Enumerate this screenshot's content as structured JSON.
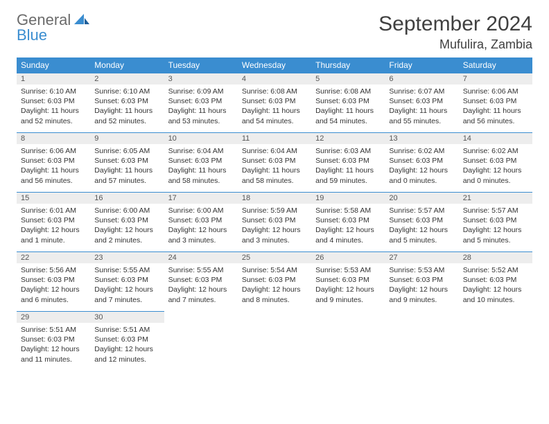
{
  "logo": {
    "general": "General",
    "blue": "Blue"
  },
  "title": "September 2024",
  "location": "Mufulira, Zambia",
  "colors": {
    "header_bg": "#3a8dd0",
    "daynum_bg": "#ededed",
    "border": "#3a8dd0",
    "text": "#333333",
    "page_bg": "#ffffff"
  },
  "weekdays": [
    "Sunday",
    "Monday",
    "Tuesday",
    "Wednesday",
    "Thursday",
    "Friday",
    "Saturday"
  ],
  "weeks": [
    [
      {
        "n": "1",
        "rise": "6:10 AM",
        "set": "6:03 PM",
        "dl": "11 hours and 52 minutes."
      },
      {
        "n": "2",
        "rise": "6:10 AM",
        "set": "6:03 PM",
        "dl": "11 hours and 52 minutes."
      },
      {
        "n": "3",
        "rise": "6:09 AM",
        "set": "6:03 PM",
        "dl": "11 hours and 53 minutes."
      },
      {
        "n": "4",
        "rise": "6:08 AM",
        "set": "6:03 PM",
        "dl": "11 hours and 54 minutes."
      },
      {
        "n": "5",
        "rise": "6:08 AM",
        "set": "6:03 PM",
        "dl": "11 hours and 54 minutes."
      },
      {
        "n": "6",
        "rise": "6:07 AM",
        "set": "6:03 PM",
        "dl": "11 hours and 55 minutes."
      },
      {
        "n": "7",
        "rise": "6:06 AM",
        "set": "6:03 PM",
        "dl": "11 hours and 56 minutes."
      }
    ],
    [
      {
        "n": "8",
        "rise": "6:06 AM",
        "set": "6:03 PM",
        "dl": "11 hours and 56 minutes."
      },
      {
        "n": "9",
        "rise": "6:05 AM",
        "set": "6:03 PM",
        "dl": "11 hours and 57 minutes."
      },
      {
        "n": "10",
        "rise": "6:04 AM",
        "set": "6:03 PM",
        "dl": "11 hours and 58 minutes."
      },
      {
        "n": "11",
        "rise": "6:04 AM",
        "set": "6:03 PM",
        "dl": "11 hours and 58 minutes."
      },
      {
        "n": "12",
        "rise": "6:03 AM",
        "set": "6:03 PM",
        "dl": "11 hours and 59 minutes."
      },
      {
        "n": "13",
        "rise": "6:02 AM",
        "set": "6:03 PM",
        "dl": "12 hours and 0 minutes."
      },
      {
        "n": "14",
        "rise": "6:02 AM",
        "set": "6:03 PM",
        "dl": "12 hours and 0 minutes."
      }
    ],
    [
      {
        "n": "15",
        "rise": "6:01 AM",
        "set": "6:03 PM",
        "dl": "12 hours and 1 minute."
      },
      {
        "n": "16",
        "rise": "6:00 AM",
        "set": "6:03 PM",
        "dl": "12 hours and 2 minutes."
      },
      {
        "n": "17",
        "rise": "6:00 AM",
        "set": "6:03 PM",
        "dl": "12 hours and 3 minutes."
      },
      {
        "n": "18",
        "rise": "5:59 AM",
        "set": "6:03 PM",
        "dl": "12 hours and 3 minutes."
      },
      {
        "n": "19",
        "rise": "5:58 AM",
        "set": "6:03 PM",
        "dl": "12 hours and 4 minutes."
      },
      {
        "n": "20",
        "rise": "5:57 AM",
        "set": "6:03 PM",
        "dl": "12 hours and 5 minutes."
      },
      {
        "n": "21",
        "rise": "5:57 AM",
        "set": "6:03 PM",
        "dl": "12 hours and 5 minutes."
      }
    ],
    [
      {
        "n": "22",
        "rise": "5:56 AM",
        "set": "6:03 PM",
        "dl": "12 hours and 6 minutes."
      },
      {
        "n": "23",
        "rise": "5:55 AM",
        "set": "6:03 PM",
        "dl": "12 hours and 7 minutes."
      },
      {
        "n": "24",
        "rise": "5:55 AM",
        "set": "6:03 PM",
        "dl": "12 hours and 7 minutes."
      },
      {
        "n": "25",
        "rise": "5:54 AM",
        "set": "6:03 PM",
        "dl": "12 hours and 8 minutes."
      },
      {
        "n": "26",
        "rise": "5:53 AM",
        "set": "6:03 PM",
        "dl": "12 hours and 9 minutes."
      },
      {
        "n": "27",
        "rise": "5:53 AM",
        "set": "6:03 PM",
        "dl": "12 hours and 9 minutes."
      },
      {
        "n": "28",
        "rise": "5:52 AM",
        "set": "6:03 PM",
        "dl": "12 hours and 10 minutes."
      }
    ],
    [
      {
        "n": "29",
        "rise": "5:51 AM",
        "set": "6:03 PM",
        "dl": "12 hours and 11 minutes."
      },
      {
        "n": "30",
        "rise": "5:51 AM",
        "set": "6:03 PM",
        "dl": "12 hours and 12 minutes."
      },
      null,
      null,
      null,
      null,
      null
    ]
  ],
  "labels": {
    "sunrise": "Sunrise: ",
    "sunset": "Sunset: ",
    "daylight": "Daylight: "
  }
}
